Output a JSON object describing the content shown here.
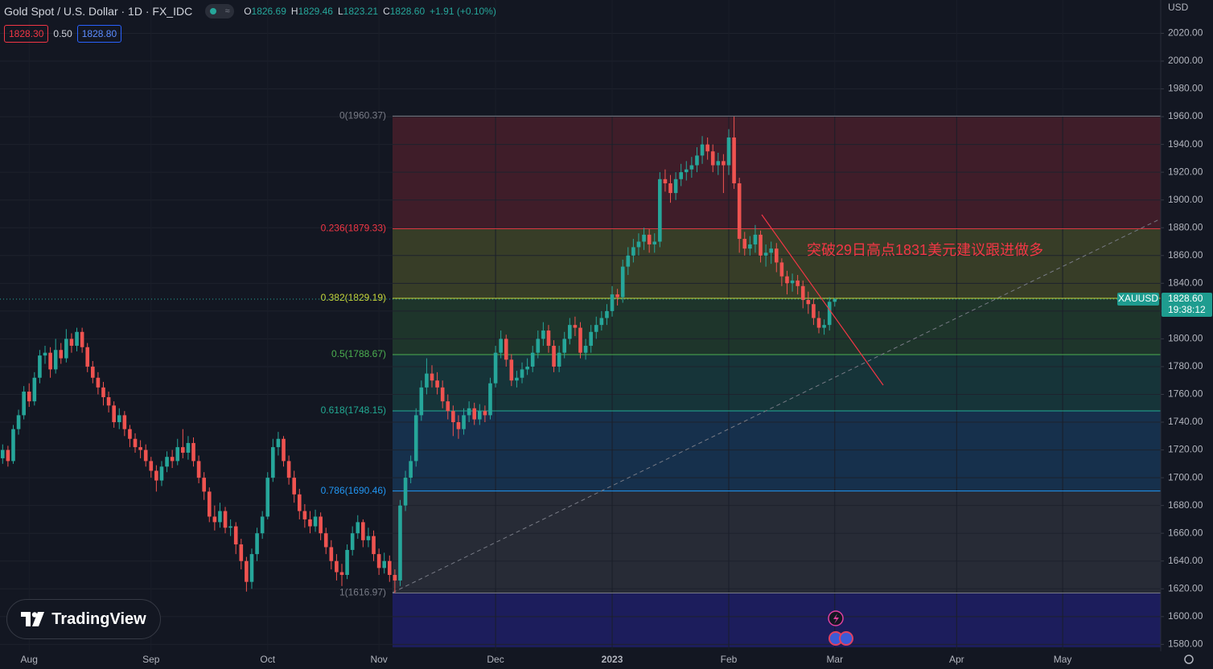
{
  "header": {
    "symbol": "Gold Spot / U.S. Dollar · 1D · FX_IDC",
    "ohlc": [
      {
        "key": "O",
        "value": "1826.69"
      },
      {
        "key": "H",
        "value": "1829.46"
      },
      {
        "key": "L",
        "value": "1823.21"
      },
      {
        "key": "C",
        "value": "1828.60"
      }
    ],
    "change": "+1.91 (+0.10%)",
    "bid": "1828.30",
    "spread": "0.50",
    "ask": "1828.80"
  },
  "logo": "TradingView",
  "chart_data": {
    "type": "candlestick",
    "currency": "USD",
    "up_color": "#26a69a",
    "down_color": "#ef5350",
    "categories": [
      null,
      null,
      null,
      null,
      null,
      "Aug",
      null,
      null,
      null,
      null,
      null,
      null,
      null,
      null,
      null,
      null,
      null,
      null,
      null,
      null,
      null,
      null,
      null,
      null,
      null,
      null,
      null,
      null,
      "Sep",
      null,
      null,
      null,
      null,
      null,
      null,
      null,
      null,
      null,
      null,
      null,
      null,
      null,
      null,
      null,
      null,
      null,
      null,
      null,
      null,
      null,
      "Oct",
      null,
      null,
      null,
      null,
      null,
      null,
      null,
      null,
      null,
      null,
      null,
      null,
      null,
      null,
      null,
      null,
      null,
      null,
      null,
      null,
      "Nov",
      null,
      null,
      null,
      null,
      null,
      null,
      null,
      null,
      null,
      null,
      null,
      null,
      null,
      null,
      null,
      null,
      null,
      null,
      null,
      null,
      null,
      "Dec",
      null,
      null,
      null,
      null,
      null,
      null,
      null,
      null,
      null,
      null,
      null,
      null,
      null,
      null,
      null,
      null,
      null,
      null,
      null,
      null,
      null,
      "2023",
      null,
      null,
      null,
      null,
      null,
      null,
      null,
      null,
      null,
      null,
      null,
      null,
      null,
      null,
      null,
      null,
      null,
      null,
      null,
      null,
      null,
      "Feb",
      null,
      null,
      null,
      null,
      null,
      null,
      null,
      null,
      null,
      null,
      null,
      null,
      null,
      null,
      null,
      null,
      null,
      null,
      null,
      "Mar",
      null,
      null,
      null,
      null,
      null,
      null,
      null,
      null,
      null,
      null,
      null,
      null,
      null,
      null,
      null,
      null,
      null,
      null,
      null,
      null,
      null,
      null,
      "Apr",
      null,
      null,
      null,
      null,
      null,
      null,
      null,
      null,
      null,
      null,
      null,
      null,
      null,
      null,
      null,
      null,
      null,
      null,
      null,
      "May",
      null,
      null,
      null,
      null,
      null,
      null,
      null,
      null,
      null,
      null,
      null,
      null,
      null,
      null,
      null,
      null,
      null,
      null
    ],
    "open": [
      1714,
      1720,
      1712,
      1735,
      1745,
      1762,
      1755,
      1772,
      1788,
      1790,
      1778,
      1792,
      1786,
      1800,
      1795,
      1805,
      1794,
      1780,
      1772,
      1765,
      1758,
      1752,
      1740,
      1745,
      1735,
      1728,
      1722,
      1720,
      1712,
      1705,
      1698,
      1708,
      1715,
      1712,
      1722,
      1718,
      1725,
      1712,
      1700,
      1690,
      1672,
      1668,
      1676,
      1664,
      1665,
      1652,
      1640,
      1625,
      1645,
      1660,
      1672,
      1700,
      1722,
      1728,
      1712,
      1700,
      1688,
      1676,
      1670,
      1665,
      1672,
      1660,
      1650,
      1640,
      1632,
      1630,
      1648,
      1660,
      1668,
      1655,
      1658,
      1645,
      1635,
      1640,
      1630,
      1626,
      1680,
      1700,
      1712,
      1745,
      1765,
      1775,
      1770,
      1765,
      1755,
      1748,
      1740,
      1735,
      1745,
      1750,
      1742,
      1748,
      1745,
      1768,
      1790,
      1800,
      1785,
      1770,
      1772,
      1778,
      1780,
      1790,
      1800,
      1806,
      1795,
      1780,
      1790,
      1800,
      1810,
      1808,
      1790,
      1795,
      1805,
      1810,
      1815,
      1820,
      1832,
      1830,
      1852,
      1860,
      1866,
      1870,
      1875,
      1868,
      1870,
      1915,
      1912,
      1905,
      1915,
      1920,
      1922,
      1925,
      1932,
      1940,
      1935,
      1925,
      1928,
      1925,
      1945,
      1912,
      1872,
      1865,
      1868,
      1875,
      1860,
      1862,
      1865,
      1855,
      1845,
      1840,
      1842,
      1838,
      1828,
      1825,
      1815,
      1808,
      1810,
      1826.69,
      null,
      null,
      null,
      null,
      null,
      null,
      null,
      null,
      null,
      null,
      null,
      null,
      null,
      null,
      null,
      null,
      null,
      null,
      null,
      null,
      null,
      null,
      null,
      null,
      null,
      null,
      null,
      null,
      null,
      null,
      null,
      null,
      null,
      null,
      null,
      null,
      null,
      null,
      null,
      null,
      null,
      null,
      null,
      null,
      null,
      null,
      null,
      null,
      null,
      null,
      null,
      null,
      null,
      null,
      null,
      null,
      null,
      null,
      null,
      null,
      null
    ],
    "high": [
      1724,
      1723,
      1738,
      1749,
      1766,
      1768,
      1776,
      1792,
      1795,
      1794,
      1800,
      1797,
      1807,
      1804,
      1808,
      1808,
      1797,
      1784,
      1776,
      1769,
      1762,
      1755,
      1750,
      1748,
      1738,
      1732,
      1727,
      1724,
      1715,
      1709,
      1712,
      1719,
      1720,
      1728,
      1735,
      1730,
      1729,
      1716,
      1704,
      1693,
      1680,
      1682,
      1679,
      1670,
      1668,
      1656,
      1643,
      1649,
      1664,
      1676,
      1704,
      1728,
      1733,
      1730,
      1716,
      1705,
      1692,
      1681,
      1676,
      1677,
      1675,
      1664,
      1655,
      1645,
      1638,
      1652,
      1665,
      1673,
      1670,
      1664,
      1662,
      1649,
      1646,
      1644,
      1634,
      1684,
      1705,
      1716,
      1750,
      1770,
      1786,
      1781,
      1776,
      1770,
      1760,
      1752,
      1745,
      1750,
      1755,
      1754,
      1753,
      1752,
      1772,
      1795,
      1806,
      1803,
      1789,
      1777,
      1783,
      1786,
      1795,
      1806,
      1812,
      1810,
      1799,
      1795,
      1805,
      1815,
      1816,
      1812,
      1800,
      1810,
      1816,
      1820,
      1825,
      1838,
      1836,
      1857,
      1866,
      1872,
      1876,
      1880,
      1879,
      1876,
      1920,
      1922,
      1918,
      1920,
      1926,
      1928,
      1931,
      1938,
      1946,
      1945,
      1940,
      1934,
      1933,
      1951,
      1960,
      1916,
      1877,
      1874,
      1882,
      1878,
      1868,
      1870,
      1869,
      1858,
      1849,
      1847,
      1846,
      1842,
      1834,
      1829,
      1820,
      1814,
      1830,
      1829.46,
      null,
      null,
      null,
      null,
      null,
      null,
      null,
      null,
      null,
      null,
      null,
      null,
      null,
      null,
      null,
      null,
      null,
      null,
      null,
      null,
      null,
      null,
      null,
      null,
      null,
      null,
      null,
      null,
      null,
      null,
      null,
      null,
      null,
      null,
      null,
      null,
      null,
      null,
      null,
      null,
      null,
      null,
      null,
      null,
      null,
      null,
      null,
      null,
      null,
      null,
      null,
      null,
      null,
      null,
      null,
      null,
      null,
      null,
      null,
      null,
      null
    ],
    "low": [
      1710,
      1708,
      1710,
      1731,
      1742,
      1751,
      1752,
      1768,
      1782,
      1772,
      1775,
      1782,
      1783,
      1790,
      1791,
      1790,
      1776,
      1768,
      1760,
      1752,
      1747,
      1736,
      1735,
      1730,
      1722,
      1718,
      1714,
      1708,
      1700,
      1690,
      1694,
      1704,
      1707,
      1709,
      1714,
      1713,
      1708,
      1696,
      1684,
      1668,
      1662,
      1664,
      1660,
      1658,
      1645,
      1634,
      1618,
      1620,
      1640,
      1656,
      1670,
      1697,
      1716,
      1708,
      1695,
      1682,
      1670,
      1664,
      1660,
      1661,
      1655,
      1645,
      1634,
      1626,
      1622,
      1627,
      1644,
      1656,
      1650,
      1650,
      1640,
      1630,
      1631,
      1625,
      1617,
      1622,
      1676,
      1696,
      1708,
      1741,
      1760,
      1765,
      1760,
      1750,
      1742,
      1730,
      1728,
      1731,
      1740,
      1738,
      1738,
      1740,
      1742,
      1765,
      1786,
      1780,
      1766,
      1765,
      1768,
      1774,
      1776,
      1786,
      1795,
      1790,
      1776,
      1776,
      1786,
      1796,
      1802,
      1786,
      1785,
      1790,
      1800,
      1806,
      1810,
      1816,
      1824,
      1826,
      1846,
      1855,
      1860,
      1864,
      1862,
      1862,
      1866,
      1906,
      1898,
      1900,
      1910,
      1914,
      1916,
      1920,
      1926,
      1929,
      1920,
      1918,
      1905,
      1918,
      1908,
      1862,
      1860,
      1860,
      1862,
      1855,
      1852,
      1854,
      1848,
      1838,
      1832,
      1834,
      1832,
      1822,
      1818,
      1810,
      1804,
      1803,
      1806,
      1823.21,
      null,
      null,
      null,
      null,
      null,
      null,
      null,
      null,
      null,
      null,
      null,
      null,
      null,
      null,
      null,
      null,
      null,
      null,
      null,
      null,
      null,
      null,
      null,
      null,
      null,
      null,
      null,
      null,
      null,
      null,
      null,
      null,
      null,
      null,
      null,
      null,
      null,
      null,
      null,
      null,
      null,
      null,
      null,
      null,
      null,
      null,
      null,
      null,
      null,
      null,
      null,
      null,
      null,
      null,
      null,
      null,
      null,
      null,
      null,
      null,
      null
    ],
    "close": [
      1720,
      1712,
      1735,
      1745,
      1762,
      1755,
      1772,
      1788,
      1790,
      1778,
      1792,
      1786,
      1800,
      1795,
      1805,
      1794,
      1780,
      1772,
      1765,
      1758,
      1752,
      1740,
      1745,
      1735,
      1728,
      1722,
      1720,
      1712,
      1705,
      1698,
      1708,
      1715,
      1712,
      1722,
      1718,
      1725,
      1712,
      1700,
      1690,
      1672,
      1668,
      1676,
      1664,
      1665,
      1652,
      1640,
      1625,
      1645,
      1660,
      1672,
      1700,
      1722,
      1728,
      1712,
      1700,
      1688,
      1676,
      1670,
      1665,
      1672,
      1660,
      1650,
      1640,
      1632,
      1630,
      1648,
      1660,
      1668,
      1655,
      1658,
      1645,
      1635,
      1640,
      1630,
      1626,
      1680,
      1700,
      1712,
      1745,
      1765,
      1775,
      1770,
      1765,
      1755,
      1748,
      1740,
      1735,
      1745,
      1750,
      1742,
      1748,
      1745,
      1768,
      1790,
      1800,
      1785,
      1770,
      1772,
      1778,
      1780,
      1790,
      1800,
      1806,
      1795,
      1780,
      1790,
      1800,
      1810,
      1808,
      1790,
      1795,
      1805,
      1810,
      1815,
      1820,
      1832,
      1830,
      1852,
      1860,
      1866,
      1870,
      1875,
      1868,
      1870,
      1915,
      1912,
      1905,
      1915,
      1920,
      1922,
      1925,
      1932,
      1940,
      1935,
      1925,
      1928,
      1925,
      1945,
      1912,
      1872,
      1865,
      1868,
      1875,
      1860,
      1862,
      1865,
      1855,
      1845,
      1840,
      1842,
      1838,
      1828,
      1825,
      1815,
      1808,
      1810,
      1826.69,
      1828.6,
      null,
      null,
      null,
      null,
      null,
      null,
      null,
      null,
      null,
      null,
      null,
      null,
      null,
      null,
      null,
      null,
      null,
      null,
      null,
      null,
      null,
      null,
      null,
      null,
      null,
      null,
      null,
      null,
      null,
      null,
      null,
      null,
      null,
      null,
      null,
      null,
      null,
      null,
      null,
      null,
      null,
      null,
      null,
      null,
      null,
      null,
      null,
      null,
      null,
      null,
      null,
      null,
      null,
      null,
      null,
      null,
      null,
      null,
      null,
      null,
      null
    ],
    "ylim": [
      1575,
      2044
    ],
    "yticks": [
      {
        "value": 1580,
        "label": "1580.00"
      },
      {
        "value": 1600,
        "label": "1600.00"
      },
      {
        "value": 1620,
        "label": "1620.00"
      },
      {
        "value": 1640,
        "label": "1640.00"
      },
      {
        "value": 1660,
        "label": "1660.00"
      },
      {
        "value": 1680,
        "label": "1680.00"
      },
      {
        "value": 1700,
        "label": "1700.00"
      },
      {
        "value": 1720,
        "label": "1720.00"
      },
      {
        "value": 1740,
        "label": "1740.00"
      },
      {
        "value": 1760,
        "label": "1760.00"
      },
      {
        "value": 1780,
        "label": "1780.00"
      },
      {
        "value": 1800,
        "label": "1800.00"
      },
      {
        "value": 1820,
        "label": "1820.00"
      },
      {
        "value": 1840,
        "label": "1840.00"
      },
      {
        "value": 1860,
        "label": "1860.00"
      },
      {
        "value": 1880,
        "label": "1880.00"
      },
      {
        "value": 1900,
        "label": "1900.00"
      },
      {
        "value": 1920,
        "label": "1920.00"
      },
      {
        "value": 1940,
        "label": "1940.00"
      },
      {
        "value": 1960,
        "label": "1960.00"
      },
      {
        "value": 1980,
        "label": "1980.00"
      },
      {
        "value": 2000,
        "label": "2000.00"
      },
      {
        "value": 2020,
        "label": "2020.00"
      }
    ],
    "grid": true,
    "fib_levels": [
      {
        "label": "0(1960.37)",
        "value": 1960.37,
        "color": "#787b86"
      },
      {
        "label": "0.236(1879.33)",
        "value": 1879.33,
        "color": "#f23645"
      },
      {
        "label": "0.382(1829.19)",
        "value": 1829.19,
        "color": "#c6d63a"
      },
      {
        "label": "0.5(1788.67)",
        "value": 1788.67,
        "color": "#4caf50"
      },
      {
        "label": "0.618(1748.15)",
        "value": 1748.15,
        "color": "#22ab94"
      },
      {
        "label": "0.786(1690.46)",
        "value": 1690.46,
        "color": "#2196f3"
      },
      {
        "label": "1(1616.97)",
        "value": 1616.97,
        "color": "#787b86"
      }
    ],
    "annotation": "突破29日高点1831美元建议跟进做多",
    "symbol_tag": "XAUUSD",
    "last_price_label": "1828.60",
    "countdown": "19:38:12"
  }
}
